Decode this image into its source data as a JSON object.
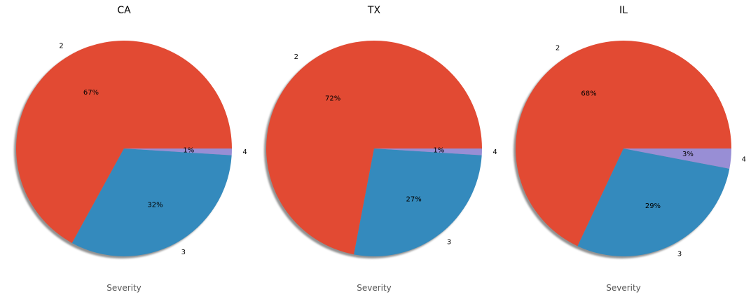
{
  "chart_data": [
    {
      "type": "pie",
      "title": "CA",
      "xlabel": "Severity",
      "categories": [
        "2",
        "3",
        "4"
      ],
      "values": [
        67,
        32,
        1
      ],
      "percent_labels": [
        "67%",
        "32%",
        "1%"
      ],
      "colors": [
        "#E24A33",
        "#348ABD",
        "#988ED5"
      ],
      "shadow": true
    },
    {
      "type": "pie",
      "title": "TX",
      "xlabel": "Severity",
      "categories": [
        "2",
        "3",
        "4"
      ],
      "values": [
        72,
        27,
        1
      ],
      "percent_labels": [
        "72%",
        "27%",
        "1%"
      ],
      "colors": [
        "#E24A33",
        "#348ABD",
        "#988ED5"
      ],
      "shadow": true
    },
    {
      "type": "pie",
      "title": "IL",
      "xlabel": "Severity",
      "categories": [
        "2",
        "3",
        "4"
      ],
      "values": [
        68,
        29,
        3
      ],
      "percent_labels": [
        "68%",
        "29%",
        "3%"
      ],
      "colors": [
        "#E24A33",
        "#348ABD",
        "#988ED5"
      ],
      "shadow": true
    }
  ]
}
